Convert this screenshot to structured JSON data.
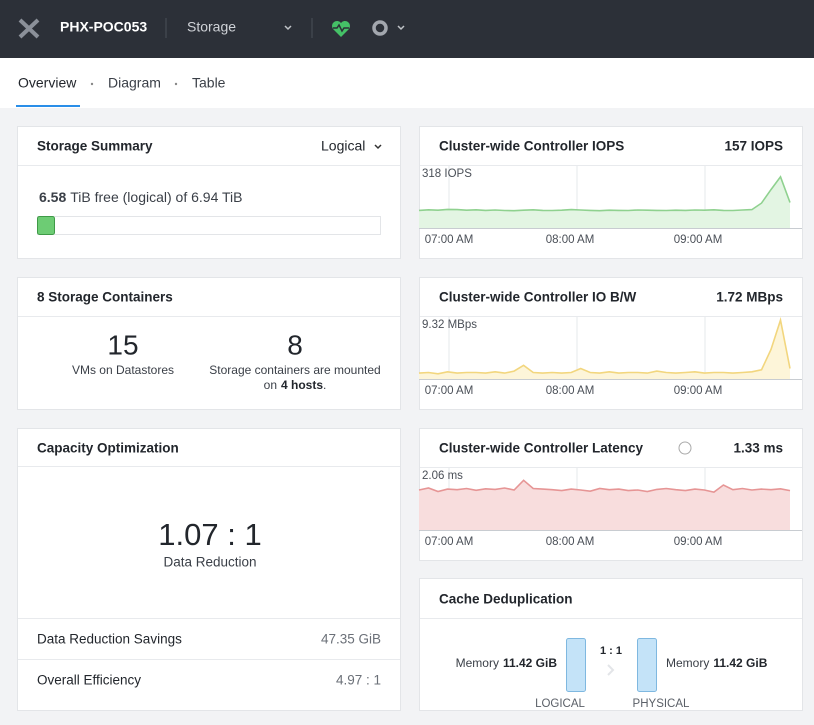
{
  "header": {
    "cluster": "PHX-POC053",
    "section": "Storage"
  },
  "tabs": [
    "Overview",
    "Diagram",
    "Table"
  ],
  "storage_summary": {
    "title": "Storage Summary",
    "mode": "Logical",
    "free_value": "6.58",
    "free_text": "TiB free (logical) of 6.94 TiB"
  },
  "containers": {
    "title": "8 Storage Containers",
    "vms_count": "15",
    "vms_label": "VMs on Datastores",
    "containers_count": "8",
    "containers_label": "Storage containers are mounted",
    "hosts_prefix": "on",
    "hosts": "4 hosts",
    "hosts_suffix": "."
  },
  "capacity": {
    "title": "Capacity Optimization",
    "ratio": "1.07 : 1",
    "ratio_label": "Data Reduction",
    "rows": [
      {
        "label": "Data Reduction Savings",
        "value": "47.35 GiB"
      },
      {
        "label": "Overall Efficiency",
        "value": "4.97 : 1"
      }
    ]
  },
  "charts": [
    {
      "type": "area",
      "title": "Cluster-wide Controller IOPS",
      "current": "157 IOPS",
      "max_label": "318 IOPS",
      "ylim": [
        0,
        318
      ],
      "color": "#8fd18f",
      "fill": "#e3f5e3",
      "x_labels": [
        "07:00 AM",
        "08:00 AM",
        "09:00 AM"
      ],
      "values": [
        92,
        95,
        93,
        97,
        96,
        93,
        95,
        92,
        94,
        91,
        90,
        93,
        95,
        92,
        91,
        93,
        96,
        94,
        92,
        90,
        93,
        92,
        91,
        94,
        93,
        92,
        91,
        93,
        92,
        94,
        93,
        95,
        92,
        91,
        94,
        96,
        130,
        200,
        267,
        133
      ]
    },
    {
      "type": "area",
      "title": "Cluster-wide Controller IO B/W",
      "current": "1.72 MBps",
      "max_label": "9.32 MBps",
      "ylim": [
        0,
        9.32
      ],
      "color": "#f2d67e",
      "fill": "#fdf5d9",
      "x_labels": [
        "07:00 AM",
        "08:00 AM",
        "09:00 AM"
      ],
      "values": [
        0.9,
        1.0,
        0.8,
        1.1,
        0.9,
        1.0,
        1.0,
        0.9,
        1.1,
        0.9,
        1.2,
        2.1,
        1.0,
        0.9,
        1.0,
        0.9,
        1.0,
        1.6,
        1.0,
        0.9,
        1.1,
        0.9,
        1.0,
        1.0,
        0.9,
        1.2,
        1.0,
        0.9,
        1.0,
        1.1,
        0.9,
        1.0,
        1.0,
        0.9,
        1.0,
        1.1,
        1.4,
        4.5,
        9.0,
        1.6
      ]
    },
    {
      "type": "area",
      "title": "Cluster-wide Controller Latency",
      "current": "1.33 ms",
      "max_label": "2.06 ms",
      "ylim": [
        0,
        2.06
      ],
      "color": "#e69595",
      "fill": "#f8dddd",
      "x_labels": [
        "07:00 AM",
        "08:00 AM",
        "09:00 AM"
      ],
      "values": [
        1.35,
        1.42,
        1.3,
        1.38,
        1.36,
        1.4,
        1.34,
        1.39,
        1.37,
        1.42,
        1.35,
        1.68,
        1.4,
        1.38,
        1.36,
        1.33,
        1.38,
        1.35,
        1.31,
        1.4,
        1.36,
        1.38,
        1.33,
        1.35,
        1.3,
        1.37,
        1.4,
        1.36,
        1.33,
        1.38,
        1.35,
        1.28,
        1.52,
        1.36,
        1.4,
        1.35,
        1.38,
        1.36,
        1.39,
        1.33
      ]
    }
  ],
  "cache": {
    "title": "Cache Deduplication",
    "ratio": "1 : 1",
    "left": {
      "label": "Memory",
      "value": "11.42 GiB",
      "caption": "LOGICAL"
    },
    "right": {
      "label": "Memory",
      "value": "11.42 GiB",
      "caption": "PHYSICAL"
    }
  }
}
